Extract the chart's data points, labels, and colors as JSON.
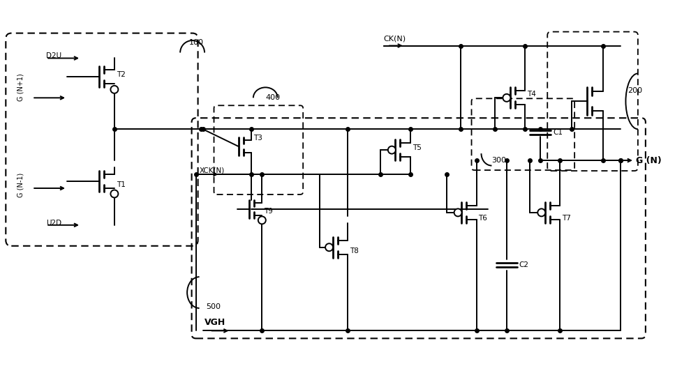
{
  "bg_color": "#ffffff",
  "lw": 1.4,
  "lw_thick": 2.0,
  "figsize": [
    10.0,
    5.25
  ],
  "dpi": 100,
  "xlim": [
    0,
    100
  ],
  "ylim": [
    0,
    52.5
  ]
}
